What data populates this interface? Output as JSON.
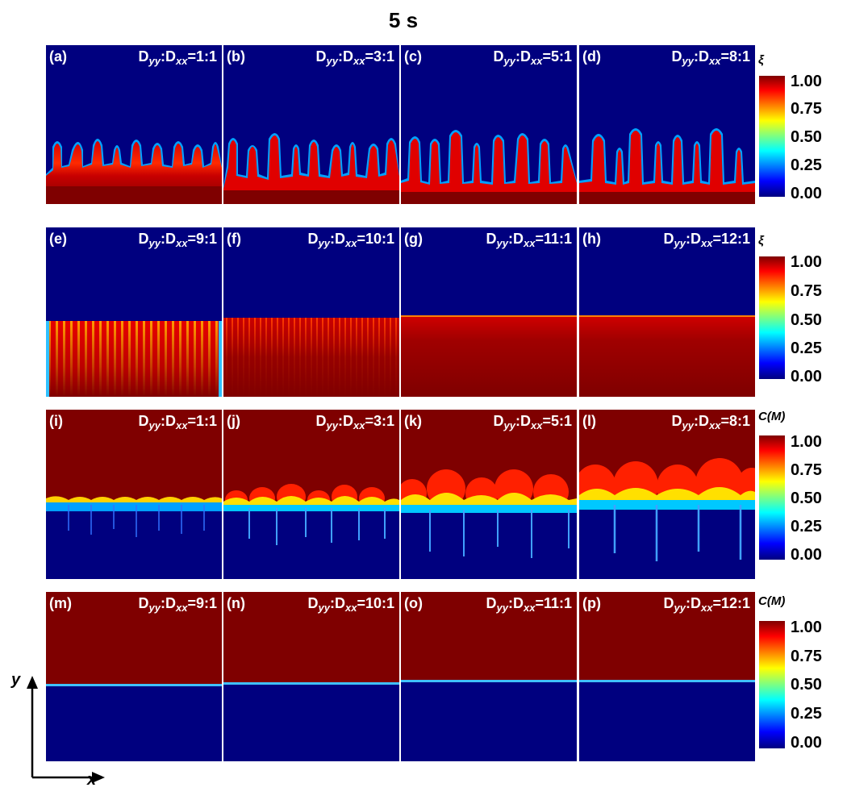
{
  "title": "5 s",
  "axes": {
    "x": "x",
    "y": "y"
  },
  "colors": {
    "low": "#00007f",
    "high": "#7f0000"
  },
  "colorbars": [
    {
      "label": "ξ",
      "ticks": [
        "1.00",
        "0.75",
        "0.50",
        "0.25",
        "0.00"
      ]
    },
    {
      "label": "ξ",
      "ticks": [
        "1.00",
        "0.75",
        "0.50",
        "0.25",
        "0.00"
      ]
    },
    {
      "label": "C(M)",
      "ticks": [
        "1.00",
        "0.75",
        "0.50",
        "0.25",
        "0.00"
      ]
    },
    {
      "label": "C(M)",
      "ticks": [
        "1.00",
        "0.75",
        "0.50",
        "0.25",
        "0.00"
      ]
    }
  ],
  "panels": [
    {
      "label": "(a)",
      "ratio": "1:1"
    },
    {
      "label": "(b)",
      "ratio": "3:1"
    },
    {
      "label": "(c)",
      "ratio": "5:1"
    },
    {
      "label": "(d)",
      "ratio": "8:1"
    },
    {
      "label": "(e)",
      "ratio": "9:1"
    },
    {
      "label": "(f)",
      "ratio": "10:1"
    },
    {
      "label": "(g)",
      "ratio": "11:1"
    },
    {
      "label": "(h)",
      "ratio": "12:1"
    },
    {
      "label": "(i)",
      "ratio": "1:1"
    },
    {
      "label": "(j)",
      "ratio": "3:1"
    },
    {
      "label": "(k)",
      "ratio": "5:1"
    },
    {
      "label": "(l)",
      "ratio": "8:1"
    },
    {
      "label": "(m)",
      "ratio": "9:1"
    },
    {
      "label": "(n)",
      "ratio": "10:1"
    },
    {
      "label": "(o)",
      "ratio": "11:1"
    },
    {
      "label": "(p)",
      "ratio": "12:1"
    }
  ]
}
